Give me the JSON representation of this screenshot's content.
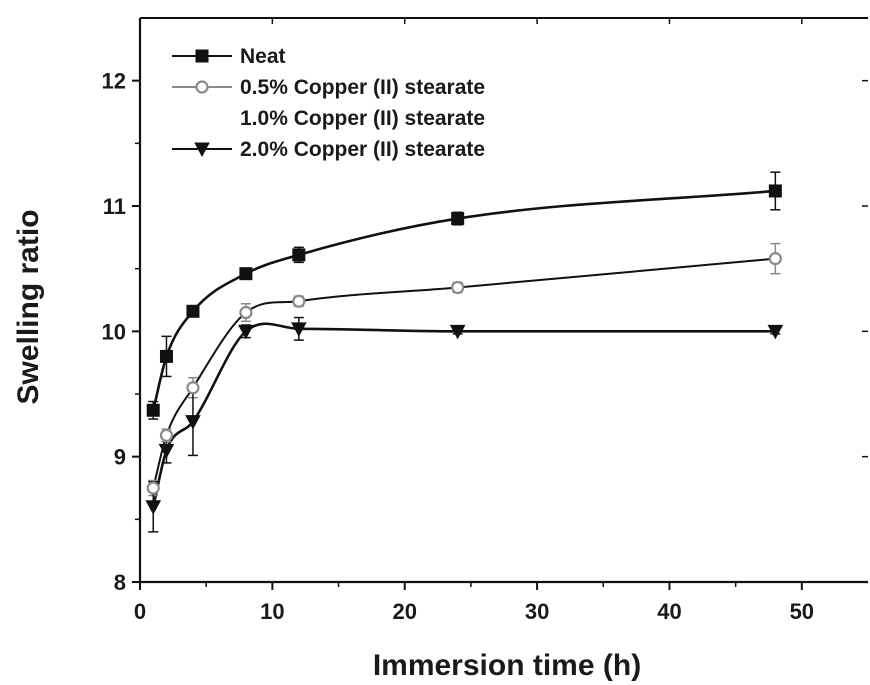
{
  "chart_data": {
    "type": "scatter",
    "title": "",
    "xlabel": "Immersion time (h)",
    "ylabel": "Swelling ratio",
    "xlim": [
      0,
      55
    ],
    "ylim": [
      8,
      12.5
    ],
    "xticks": [
      0,
      10,
      20,
      30,
      40,
      50
    ],
    "yticks": [
      8,
      9,
      10,
      11,
      12
    ],
    "grid": false,
    "legend_position": "top-left",
    "series": [
      {
        "name": "Neat",
        "marker": "square",
        "color": "#111111",
        "line_color": "#111111",
        "x": [
          1,
          2,
          4,
          8,
          12,
          24,
          48
        ],
        "y": [
          9.37,
          9.8,
          10.16,
          10.46,
          10.61,
          10.9,
          11.12
        ],
        "err": [
          0.07,
          0.16,
          0.04,
          0.04,
          0.06,
          0.05,
          0.15
        ]
      },
      {
        "name": "0.5% Copper (II) stearate",
        "marker": "circle-open",
        "color": "#8a8a8a",
        "line_color": "#111111",
        "x": [
          1,
          2,
          4,
          8,
          12,
          24,
          48
        ],
        "y": [
          8.75,
          9.17,
          9.55,
          10.15,
          10.24,
          10.35,
          10.58
        ],
        "err": [
          0.06,
          0.05,
          0.08,
          0.07,
          0.04,
          0.04,
          0.12
        ]
      },
      {
        "name": "1.0% Copper (II) stearate",
        "marker": "none",
        "color": "#111111",
        "line_color": "#111111",
        "x": [],
        "y": [],
        "err": []
      },
      {
        "name": "2.0% Copper (II) stearate",
        "marker": "triangle-down",
        "color": "#111111",
        "line_color": "#111111",
        "x": [
          1,
          2,
          4,
          8,
          12,
          24,
          48
        ],
        "y": [
          8.6,
          9.05,
          9.28,
          10.0,
          10.02,
          10.0,
          10.0
        ],
        "err": [
          0.2,
          0.1,
          0.27,
          0.05,
          0.09,
          0.02,
          0.02
        ]
      }
    ]
  }
}
